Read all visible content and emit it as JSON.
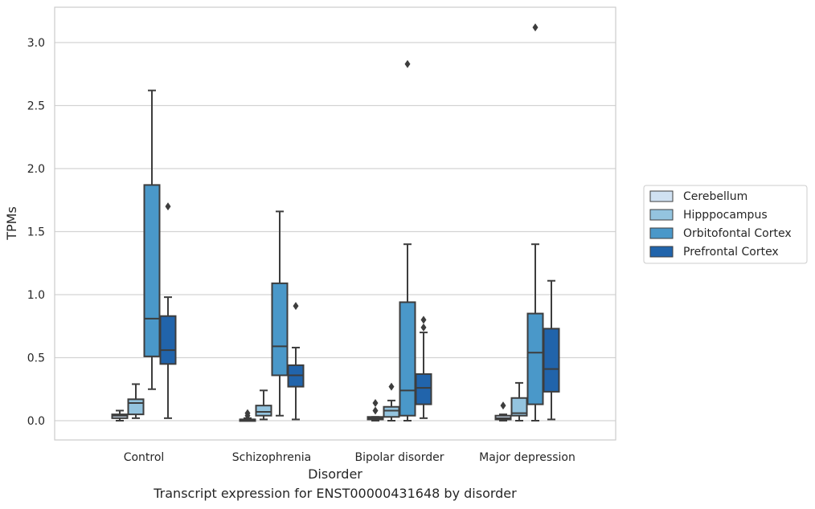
{
  "chart_data": {
    "type": "box",
    "title": "",
    "xlabel": "Disorder",
    "ylabel": "TPMs",
    "ylim": [
      -0.15,
      3.28
    ],
    "yticks": [
      "0.0",
      "0.5",
      "1.0",
      "1.5",
      "2.0",
      "2.5",
      "3.0"
    ],
    "ytick_values": [
      0,
      0.5,
      1.0,
      1.5,
      2.0,
      2.5,
      3.0
    ],
    "grid": "horizontal",
    "legend_position": "center-right",
    "categories": [
      "Control",
      "Schizophrenia",
      "Bipolar disorder",
      "Major depression"
    ],
    "series": [
      {
        "name": "Cerebellum",
        "color": "#d0e1f2",
        "boxes": [
          {
            "whislo": 0.0,
            "q1": 0.02,
            "med": 0.04,
            "q3": 0.05,
            "whishi": 0.08,
            "fliers": []
          },
          {
            "whislo": 0.0,
            "q1": 0.0,
            "med": 0.01,
            "q3": 0.01,
            "whishi": 0.02,
            "fliers": [
              0.04,
              0.06
            ]
          },
          {
            "whislo": 0.0,
            "q1": 0.01,
            "med": 0.02,
            "q3": 0.03,
            "whishi": 0.03,
            "fliers": [
              0.08,
              0.14
            ]
          },
          {
            "whislo": 0.0,
            "q1": 0.01,
            "med": 0.02,
            "q3": 0.04,
            "whishi": 0.05,
            "fliers": [
              0.12
            ]
          }
        ]
      },
      {
        "name": "Hipppocampus",
        "color": "#94c4df",
        "boxes": [
          {
            "whislo": 0.02,
            "q1": 0.05,
            "med": 0.14,
            "q3": 0.17,
            "whishi": 0.29,
            "fliers": []
          },
          {
            "whislo": 0.01,
            "q1": 0.04,
            "med": 0.07,
            "q3": 0.12,
            "whishi": 0.24,
            "fliers": []
          },
          {
            "whislo": 0.0,
            "q1": 0.03,
            "med": 0.08,
            "q3": 0.11,
            "whishi": 0.16,
            "fliers": [
              0.27
            ]
          },
          {
            "whislo": 0.0,
            "q1": 0.04,
            "med": 0.06,
            "q3": 0.18,
            "whishi": 0.3,
            "fliers": []
          }
        ]
      },
      {
        "name": "Orbitofontal Cortex",
        "color": "#4a98c9",
        "boxes": [
          {
            "whislo": 0.25,
            "q1": 0.51,
            "med": 0.81,
            "q3": 1.87,
            "whishi": 2.62,
            "fliers": []
          },
          {
            "whislo": 0.04,
            "q1": 0.36,
            "med": 0.59,
            "q3": 1.09,
            "whishi": 1.66,
            "fliers": []
          },
          {
            "whislo": 0.0,
            "q1": 0.04,
            "med": 0.24,
            "q3": 0.94,
            "whishi": 1.4,
            "fliers": [
              2.83
            ]
          },
          {
            "whislo": 0.0,
            "q1": 0.13,
            "med": 0.54,
            "q3": 0.85,
            "whishi": 1.4,
            "fliers": [
              3.12
            ]
          }
        ]
      },
      {
        "name": "Prefrontal Cortex",
        "color": "#2164ab",
        "boxes": [
          {
            "whislo": 0.02,
            "q1": 0.45,
            "med": 0.56,
            "q3": 0.83,
            "whishi": 0.98,
            "fliers": [
              1.7
            ]
          },
          {
            "whislo": 0.01,
            "q1": 0.27,
            "med": 0.36,
            "q3": 0.44,
            "whishi": 0.58,
            "fliers": [
              0.91
            ]
          },
          {
            "whislo": 0.02,
            "q1": 0.13,
            "med": 0.26,
            "q3": 0.37,
            "whishi": 0.7,
            "fliers": [
              0.74,
              0.8
            ]
          },
          {
            "whislo": 0.01,
            "q1": 0.23,
            "med": 0.41,
            "q3": 0.73,
            "whishi": 1.11,
            "fliers": []
          }
        ]
      }
    ]
  },
  "caption": "Transcript expression for ENST00000431648 by disorder"
}
